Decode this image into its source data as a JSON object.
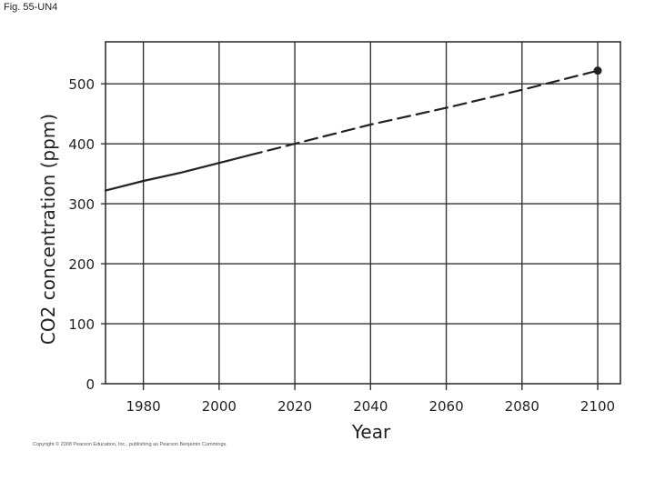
{
  "figure_label": "Fig. 55-UN4",
  "copyright": "Copyright © 2008 Pearson Education, Inc., publishing as Pearson Benjamin Cummings.",
  "colors": {
    "line": "#222222",
    "grid": "#333333",
    "background": "#ffffff"
  },
  "chart_data": {
    "type": "line",
    "title": "",
    "xlabel": "Year",
    "ylabel": "CO2 concentration (ppm)",
    "xlim": [
      1970,
      2106
    ],
    "ylim": [
      0,
      570
    ],
    "xticks": [
      1980,
      2000,
      2020,
      2040,
      2060,
      2080,
      2100
    ],
    "xtick_labels": [
      "1980",
      "2000",
      "2020",
      "2040",
      "2060",
      "2080",
      "2100"
    ],
    "yticks": [
      0,
      100,
      200,
      300,
      400,
      500
    ],
    "ytick_labels": [
      "0",
      "100",
      "200",
      "300",
      "400",
      "500"
    ],
    "grid": true,
    "series": [
      {
        "style": "solid",
        "x": [
          1970,
          1980,
          1990,
          2000,
          2008
        ],
        "y": [
          322,
          338,
          352,
          368,
          381
        ]
      },
      {
        "style": "dashed",
        "x": [
          2008,
          2020,
          2040,
          2060,
          2080,
          2100
        ],
        "y": [
          381,
          400,
          432,
          460,
          490,
          522
        ]
      }
    ],
    "endpoint_marker": {
      "x": 2100,
      "y": 522
    }
  }
}
